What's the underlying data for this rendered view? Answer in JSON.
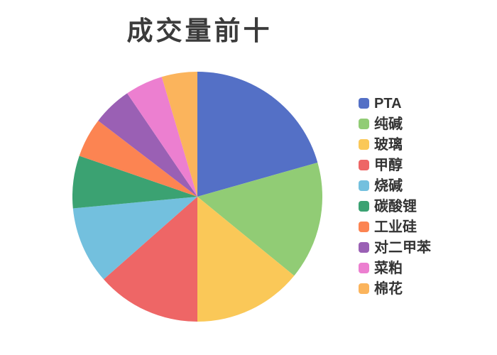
{
  "chart_data": {
    "type": "pie",
    "title": "成交量前十",
    "legend_position": "right",
    "start_angle_deg": 90,
    "direction": "clockwise",
    "values_are": "percent_of_total_estimated_from_slice_angles",
    "background_color": "#ffffff",
    "title_color": "#3b3b3b",
    "legend_text_color": "#333333",
    "items": [
      {
        "label": "PTA",
        "value": 20.6,
        "color": "#5470c6"
      },
      {
        "label": "纯碱",
        "value": 15.3,
        "color": "#91cc75"
      },
      {
        "label": "玻璃",
        "value": 14.1,
        "color": "#fac858"
      },
      {
        "label": "甲醇",
        "value": 13.5,
        "color": "#ee6666"
      },
      {
        "label": "烧碱",
        "value": 10.0,
        "color": "#73c0de"
      },
      {
        "label": "碳酸锂",
        "value": 6.8,
        "color": "#3ba272"
      },
      {
        "label": "工业硅",
        "value": 5.1,
        "color": "#fc8452"
      },
      {
        "label": "对二甲苯",
        "value": 5.1,
        "color": "#9a60b4"
      },
      {
        "label": "菜粕",
        "value": 4.9,
        "color": "#ec7fd0"
      },
      {
        "label": "棉花",
        "value": 4.6,
        "color": "#fbb45c"
      }
    ]
  }
}
